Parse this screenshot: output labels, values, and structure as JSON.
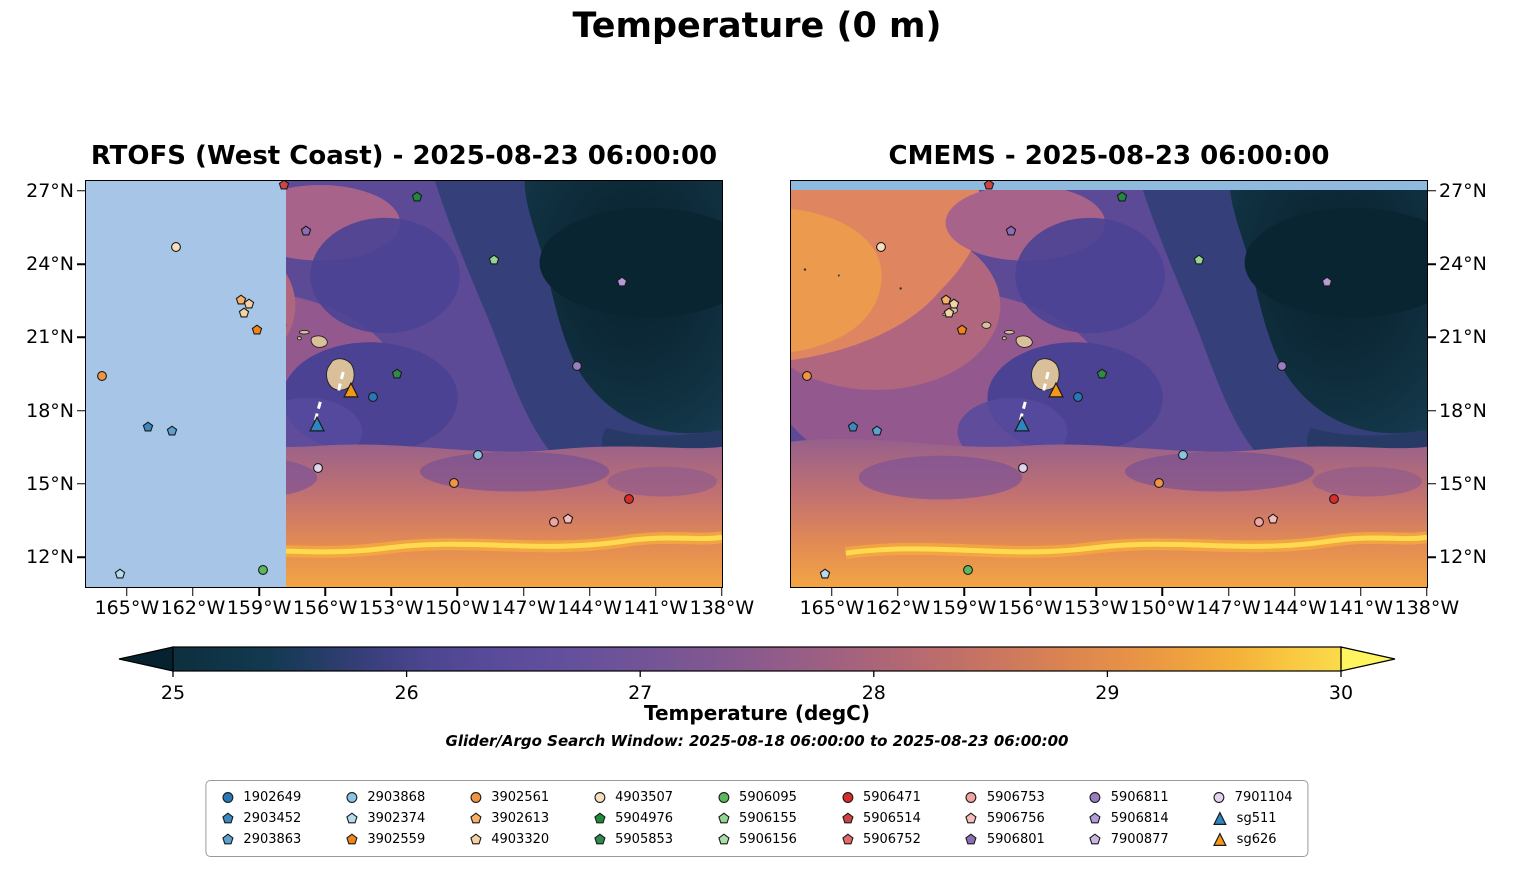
{
  "chart_data": {
    "type": "heatmap",
    "title": "Temperature (0 m)",
    "annotation": "Glider/Argo Search Window: 2025-08-18 06:00:00 to 2025-08-23 06:00:00",
    "panels": [
      {
        "name": "RTOFS",
        "title": "RTOFS (West Coast) - 2025-08-23 06:00:00",
        "notes": "Region west of ~157.8°W masked light blue (outside RTOFS West Coast grid); Hawaiian Islands shown tan; white dashed glider tracks near 156°W/18°N"
      },
      {
        "name": "CMEMS",
        "title": "CMEMS - 2025-08-23 06:00:00",
        "notes": "Full-field temperature; thin light-blue strip along top edge north of ~27.2°N; same float/glider markers as left panel"
      }
    ],
    "field_pattern": "Cold dark-teal pool in NE quadrant (~24-27N, 138-150W), indigo/purple mid-latitudes, mauve band ~13-16N, warm salmon/orange south of ~13N with bright yellow ridge near 12N",
    "projection": {
      "lon_left_degW": 166.9,
      "lon_right_degW": 137.95,
      "lat_top_degN": 27.45,
      "lat_bottom_degN": 10.73
    },
    "x_ticks": [
      {
        "lon_degW": 165,
        "label": "165°W"
      },
      {
        "lon_degW": 162,
        "label": "162°W"
      },
      {
        "lon_degW": 159,
        "label": "159°W"
      },
      {
        "lon_degW": 156,
        "label": "156°W"
      },
      {
        "lon_degW": 153,
        "label": "153°W"
      },
      {
        "lon_degW": 150,
        "label": "150°W"
      },
      {
        "lon_degW": 147,
        "label": "147°W"
      },
      {
        "lon_degW": 144,
        "label": "144°W"
      },
      {
        "lon_degW": 141,
        "label": "141°W"
      },
      {
        "lon_degW": 138,
        "label": "138°W"
      }
    ],
    "y_ticks": [
      {
        "lat_degN": 27,
        "label": "27°N"
      },
      {
        "lat_degN": 24,
        "label": "24°N"
      },
      {
        "lat_degN": 21,
        "label": "21°N"
      },
      {
        "lat_degN": 18,
        "label": "18°N"
      },
      {
        "lat_degN": 15,
        "label": "15°N"
      },
      {
        "lat_degN": 12,
        "label": "12°N"
      }
    ],
    "colorbar": {
      "label": "Temperature (degC)",
      "min": 25,
      "max": 30,
      "ticks": [
        25,
        26,
        27,
        28,
        29,
        30
      ],
      "extend": "both",
      "under_color": "#07222f",
      "over_color": "#fdf45f",
      "gradient_stops": [
        [
          0.0,
          "#0d2f3e"
        ],
        [
          0.08,
          "#123950"
        ],
        [
          0.12,
          "#223c63"
        ],
        [
          0.17,
          "#3a3f7d"
        ],
        [
          0.22,
          "#4d4691"
        ],
        [
          0.28,
          "#5a4b9b"
        ],
        [
          0.34,
          "#64509c"
        ],
        [
          0.4,
          "#715497"
        ],
        [
          0.46,
          "#805791"
        ],
        [
          0.52,
          "#925c89"
        ],
        [
          0.58,
          "#a4627e"
        ],
        [
          0.64,
          "#b76a70"
        ],
        [
          0.7,
          "#c97561"
        ],
        [
          0.76,
          "#da8352"
        ],
        [
          0.82,
          "#e79247"
        ],
        [
          0.87,
          "#efa23e"
        ],
        [
          0.91,
          "#f4b13a"
        ],
        [
          0.95,
          "#f8c53f"
        ],
        [
          1.0,
          "#fbda4b"
        ]
      ]
    },
    "floats": [
      {
        "label": "1902649",
        "shape": "circle",
        "color": "#2878b8",
        "positions_lonW_latN": [
          [
            153.85,
            18.55
          ]
        ]
      },
      {
        "label": "2903452",
        "shape": "pentagon",
        "color": "#3a8ac0",
        "positions_lonW_latN": [
          [
            164.1,
            17.3
          ]
        ]
      },
      {
        "label": "2903863",
        "shape": "pentagon",
        "color": "#5aa2d0",
        "positions_lonW_latN": [
          [
            163.0,
            17.15
          ]
        ]
      },
      {
        "label": "2903868",
        "shape": "circle",
        "color": "#8ac4e0",
        "positions_lonW_latN": [
          [
            149.05,
            16.15
          ]
        ]
      },
      {
        "label": "3902374",
        "shape": "pentagon",
        "color": "#b9d9ec",
        "positions_lonW_latN": [
          [
            165.35,
            11.25
          ]
        ]
      },
      {
        "label": "3902559",
        "shape": "pentagon",
        "color": "#f08418",
        "positions_lonW_latN": [
          [
            159.1,
            21.3
          ]
        ]
      },
      {
        "label": "3902561",
        "shape": "circle",
        "color": "#f29440",
        "positions_lonW_latN": [
          [
            166.15,
            19.4
          ],
          [
            150.15,
            15.0
          ]
        ]
      },
      {
        "label": "3902613",
        "shape": "pentagon",
        "color": "#f7b066",
        "positions_lonW_latN": [
          [
            159.85,
            22.55
          ]
        ]
      },
      {
        "label": "4903320",
        "shape": "pentagon",
        "color": "#f3d3a4",
        "positions_lonW_latN": [
          [
            159.5,
            22.4
          ],
          [
            159.7,
            22.0
          ]
        ]
      },
      {
        "label": "4903507",
        "shape": "circle",
        "color": "#f6dfbd",
        "positions_lonW_latN": [
          [
            162.8,
            24.75
          ]
        ]
      },
      {
        "label": "5904976",
        "shape": "pentagon",
        "color": "#1f8a3c",
        "positions_lonW_latN": [
          [
            151.85,
            26.8
          ]
        ]
      },
      {
        "label": "5905853",
        "shape": "pentagon",
        "color": "#2e8b4a",
        "positions_lonW_latN": [
          [
            152.75,
            19.5
          ]
        ]
      },
      {
        "label": "5906095",
        "shape": "circle",
        "color": "#5cb85c",
        "positions_lonW_latN": [
          [
            158.85,
            11.45
          ]
        ]
      },
      {
        "label": "5906155",
        "shape": "pentagon",
        "color": "#93d693",
        "positions_lonW_latN": [
          [
            148.35,
            24.2
          ]
        ]
      },
      {
        "label": "5906156",
        "shape": "pentagon",
        "color": "#aadfaa",
        "positions_lonW_latN": []
      },
      {
        "label": "5906471",
        "shape": "circle",
        "color": "#d92b2b",
        "positions_lonW_latN": [
          [
            142.2,
            14.35
          ]
        ]
      },
      {
        "label": "5906514",
        "shape": "pentagon",
        "color": "#cc4444",
        "positions_lonW_latN": [
          [
            157.9,
            27.3
          ]
        ]
      },
      {
        "label": "5906752",
        "shape": "pentagon",
        "color": "#e26a6a",
        "positions_lonW_latN": []
      },
      {
        "label": "5906753",
        "shape": "circle",
        "color": "#f2a3a2",
        "positions_lonW_latN": [
          [
            145.6,
            13.4
          ]
        ]
      },
      {
        "label": "5906756",
        "shape": "pentagon",
        "color": "#f6bdbc",
        "positions_lonW_latN": [
          [
            144.95,
            13.55
          ]
        ]
      },
      {
        "label": "5906801",
        "shape": "pentagon",
        "color": "#8d6cb8",
        "positions_lonW_latN": [
          [
            156.9,
            25.4
          ]
        ]
      },
      {
        "label": "5906811",
        "shape": "circle",
        "color": "#9a7cc0",
        "positions_lonW_latN": [
          [
            144.55,
            19.85
          ]
        ]
      },
      {
        "label": "5906814",
        "shape": "pentagon",
        "color": "#b49cd8",
        "positions_lonW_latN": [
          [
            142.5,
            23.3
          ]
        ]
      },
      {
        "label": "7900877",
        "shape": "pentagon",
        "color": "#c9b8e2",
        "positions_lonW_latN": []
      },
      {
        "label": "7901104",
        "shape": "circle",
        "color": "#e0d4ee",
        "positions_lonW_latN": [
          [
            156.35,
            15.65
          ]
        ]
      },
      {
        "label": "sg511",
        "shape": "triangle",
        "color": "#2e86c1",
        "positions_lonW_latN": [
          [
            156.4,
            17.45
          ]
        ]
      },
      {
        "label": "sg626",
        "shape": "triangle",
        "color": "#f59816",
        "positions_lonW_latN": [
          [
            154.85,
            18.85
          ]
        ]
      }
    ]
  }
}
